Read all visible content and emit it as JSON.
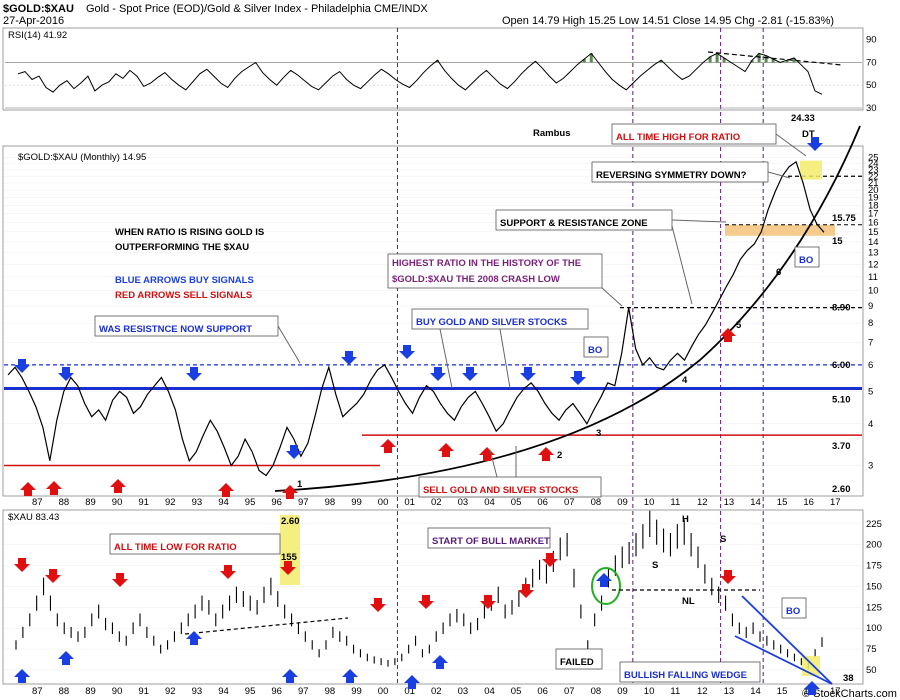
{
  "header": {
    "symbol": "$GOLD:$XAU",
    "description": "Gold - Spot Price (EOD)/Gold & Silver Index - Philadelphia  CME/INDX",
    "date": "27-Apr-2016",
    "quote": "Open 14.79  High 15.25  Low 14.51  Close 14.95  Chg -2.81 (-15.83%)",
    "credit": "© StockCharts.com"
  },
  "chart_data": [
    {
      "type": "line",
      "panel": "rsi",
      "title": "RSI(14) 41.92",
      "ylim": [
        30,
        95
      ],
      "y_ticks": [
        "90",
        "70",
        "50",
        "30"
      ],
      "ref_lines": [
        70,
        30
      ],
      "series": [
        {
          "values": [
            60,
            62,
            55,
            58,
            48,
            44,
            50,
            54,
            47,
            52,
            58,
            45,
            50,
            53,
            60,
            56,
            63,
            58,
            49,
            52,
            57,
            61,
            55,
            50,
            46,
            53,
            60,
            64,
            58,
            52,
            48,
            56,
            62,
            66,
            70,
            61,
            55,
            50,
            57,
            63,
            59,
            54,
            49,
            46,
            52,
            58,
            62,
            55,
            50,
            47,
            53,
            59,
            64,
            60,
            55,
            51,
            48,
            54,
            61,
            67,
            72,
            63,
            56,
            50,
            46,
            52,
            58,
            63,
            57,
            51,
            47,
            53,
            60,
            66,
            71,
            65,
            58,
            52,
            56,
            62,
            68,
            73,
            78,
            70,
            62,
            55,
            50,
            46,
            52,
            58,
            63,
            68,
            72,
            66,
            60,
            55,
            58,
            64,
            70,
            75,
            78,
            74,
            70,
            66,
            62,
            72,
            78,
            76,
            73,
            70,
            72,
            74,
            68,
            62,
            45,
            42
          ]
        }
      ],
      "trendline_label": "",
      "annotations": [
        "Rambus"
      ]
    },
    {
      "type": "line",
      "panel": "ratio",
      "title": "$GOLD:$XAU (Monthly) 14.95",
      "scale": "log",
      "ylim": [
        2.5,
        26
      ],
      "y_ticks": [
        "25",
        "24",
        "23",
        "22",
        "21",
        "20",
        "19",
        "18",
        "17",
        "16",
        "15",
        "14",
        "13",
        "12",
        "11",
        "10",
        "9",
        "8",
        "7",
        "6",
        "5",
        "4",
        "3"
      ],
      "x_ticks": [
        "87",
        "88",
        "89",
        "90",
        "91",
        "92",
        "93",
        "94",
        "95",
        "96",
        "97",
        "98",
        "99",
        "00",
        "01",
        "02",
        "03",
        "04",
        "05",
        "06",
        "07",
        "08",
        "09",
        "10",
        "11",
        "12",
        "13",
        "14",
        "15",
        "16",
        "17"
      ],
      "price_levels": [
        "24.33",
        "15.75",
        "15",
        "8.90",
        "6.00",
        "5.10",
        "3.70",
        "2.60"
      ],
      "annotations": {
        "rising_note_1": "WHEN RATIO IS RISING GOLD IS",
        "rising_note_2": "OUTPERFORMING THE $XAU",
        "blue_note": "BLUE ARROWS BUY SIGNALS",
        "red_note": "RED ARROWS SELL SIGNALS",
        "was_resistance": "WAS RESISTNCE NOW SUPPORT",
        "highest_1": "HIGHEST RATIO IN THE HISTORY OF THE",
        "highest_2": "$GOLD:$XAU THE 2008 CRASH LOW",
        "buy_stocks": "BUY GOLD AND SILVER STOCKS",
        "sell_stocks": "SELL GOLD AND SILVER STOCKS",
        "ath": "ALL TIME HIGH FOR RATIO",
        "reversing": "REVERSING SYMMETRY DOWN?",
        "snr_zone": "SUPPORT & RESISTANCE ZONE",
        "bo": "BO",
        "dt": "DT",
        "points": [
          "1",
          "2",
          "3",
          "4",
          "5",
          "6"
        ]
      },
      "series": [
        {
          "values": [
            5.6,
            5.9,
            5.5,
            5.0,
            4.5,
            3.9,
            3.1,
            4.1,
            5.0,
            5.5,
            5.2,
            4.6,
            4.2,
            4.4,
            4.1,
            4.7,
            5.0,
            4.8,
            4.3,
            4.5,
            4.9,
            5.2,
            5.5,
            5.0,
            4.4,
            3.6,
            3.1,
            3.3,
            3.7,
            4.1,
            3.8,
            3.4,
            3.0,
            3.2,
            3.6,
            3.3,
            2.9,
            2.8,
            3.0,
            3.4,
            3.9,
            3.6,
            3.2,
            3.5,
            4.2,
            5.1,
            5.9,
            4.9,
            4.2,
            4.4,
            4.6,
            4.9,
            5.4,
            5.8,
            6.0,
            5.5,
            5.0,
            4.6,
            4.3,
            4.8,
            5.2,
            5.0,
            4.6,
            4.3,
            4.1,
            4.5,
            4.8,
            5.0,
            4.6,
            4.2,
            3.8,
            4.0,
            4.4,
            4.8,
            5.1,
            5.3,
            5.0,
            4.6,
            4.3,
            4.1,
            4.4,
            4.6,
            4.3,
            4.0,
            4.4,
            4.8,
            5.3,
            5.2,
            6.5,
            8.9,
            6.7,
            6.0,
            6.3,
            5.9,
            5.8,
            6.2,
            6.5,
            6.2,
            6.8,
            7.4,
            7.9,
            8.6,
            9.4,
            10.3,
            11.2,
            12.4,
            13.2,
            13.8,
            15.0,
            17.5,
            19.8,
            22.0,
            23.5,
            24.3,
            21.0,
            17.5,
            15.8,
            14.95
          ]
        }
      ]
    },
    {
      "type": "line",
      "panel": "xau",
      "title": "$XAU 83.43",
      "ylim": [
        38,
        232
      ],
      "y_ticks": [
        "225",
        "200",
        "175",
        "150",
        "125",
        "100",
        "75",
        "50"
      ],
      "x_ticks": [
        "87",
        "88",
        "89",
        "90",
        "91",
        "92",
        "93",
        "94",
        "95",
        "96",
        "97",
        "98",
        "99",
        "00",
        "01",
        "02",
        "03",
        "04",
        "05",
        "06",
        "07",
        "08",
        "09",
        "10",
        "11",
        "12",
        "13",
        "14",
        "15",
        "16",
        "17"
      ],
      "price_levels": [
        "38"
      ],
      "annotations": {
        "atl": "ALL TIME LOW FOR RATIO",
        "atl_value": "2.60",
        "atl_price": "155",
        "bull_start": "START OF BULL MARKET",
        "failed": "FAILED",
        "wedge": "BULLISH FALLING WEDGE",
        "bo": "BO",
        "s1": "S",
        "h": "H",
        "s2": "S",
        "nl": "NL"
      },
      "series": [
        {
          "values": [
            80,
            95,
            110,
            130,
            150,
            130,
            110,
            100,
            95,
            90,
            95,
            110,
            120,
            105,
            100,
            90,
            85,
            100,
            110,
            95,
            85,
            75,
            80,
            90,
            100,
            110,
            120,
            130,
            125,
            110,
            120,
            130,
            140,
            135,
            130,
            125,
            140,
            150,
            135,
            120,
            110,
            100,
            90,
            80,
            70,
            80,
            95,
            90,
            85,
            75,
            70,
            65,
            62,
            60,
            58,
            60,
            65,
            75,
            85,
            70,
            75,
            90,
            100,
            110,
            115,
            110,
            100,
            105,
            120,
            130,
            140,
            120,
            125,
            135,
            150,
            160,
            170,
            165,
            180,
            195,
            200,
            160,
            120,
            80,
            110,
            130,
            160,
            175,
            185,
            190,
            200,
            210,
            225,
            215,
            205,
            200,
            210,
            215,
            200,
            185,
            165,
            150,
            140,
            130,
            110,
            100,
            95,
            100,
            90,
            85,
            80,
            75,
            70,
            65,
            60,
            55,
            70,
            83.43
          ]
        }
      ]
    }
  ]
}
